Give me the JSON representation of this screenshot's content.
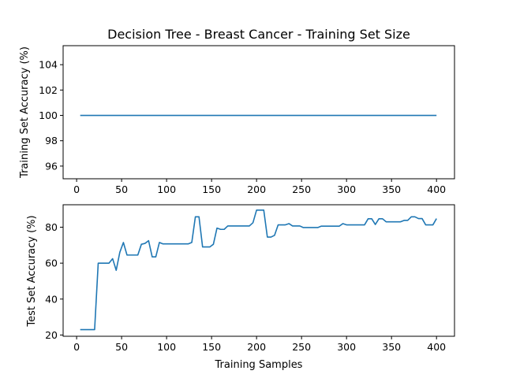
{
  "chart_data": [
    {
      "type": "line",
      "title": "Decision Tree - Breast Cancer - Training Set Size",
      "xlabel": "",
      "ylabel": "Training Set Accuracy (%)",
      "xlim": [
        -15,
        420
      ],
      "ylim": [
        95,
        105.5
      ],
      "xticks": [
        0,
        50,
        100,
        150,
        200,
        250,
        300,
        350,
        400
      ],
      "yticks": [
        96,
        98,
        100,
        102,
        104
      ],
      "grid": false,
      "color": "#1f77b4",
      "x": [
        4,
        400
      ],
      "y": [
        100,
        100
      ]
    },
    {
      "type": "line",
      "title": "",
      "xlabel": "Training Samples",
      "ylabel": "Test Set Accuracy (%)",
      "xlim": [
        -15,
        420
      ],
      "ylim": [
        19.3,
        92.5
      ],
      "xticks": [
        0,
        50,
        100,
        150,
        200,
        250,
        300,
        350,
        400
      ],
      "yticks": [
        20,
        40,
        60,
        80
      ],
      "grid": false,
      "color": "#1f77b4",
      "x": [
        4,
        20,
        24,
        36,
        40,
        44,
        48,
        52,
        56,
        68,
        72,
        76,
        80,
        84,
        88,
        92,
        96,
        124,
        128,
        132,
        136,
        140,
        148,
        152,
        156,
        160,
        164,
        168,
        192,
        196,
        200,
        208,
        212,
        216,
        220,
        224,
        232,
        236,
        240,
        248,
        252,
        268,
        272,
        292,
        296,
        300,
        320,
        324,
        328,
        332,
        336,
        340,
        344,
        360,
        364,
        368,
        372,
        376,
        380,
        384,
        388,
        396,
        400
      ],
      "y": [
        23,
        23,
        60,
        60,
        62.5,
        56,
        66,
        71.5,
        64.5,
        64.5,
        70.5,
        71,
        72.5,
        63.5,
        63.5,
        71.5,
        70.7,
        70.7,
        71.5,
        85.8,
        85.8,
        69,
        69,
        70.5,
        79.5,
        78.8,
        78.8,
        80.7,
        80.7,
        82.5,
        89.5,
        89.5,
        74.5,
        74.5,
        75.5,
        81.3,
        81.3,
        82,
        80.7,
        80.7,
        79.8,
        79.8,
        80.6,
        80.6,
        82,
        81.3,
        81.3,
        84.7,
        84.7,
        81.5,
        84.7,
        84.7,
        83,
        83,
        83.8,
        83.8,
        85.8,
        85.8,
        84.8,
        84.8,
        81.3,
        81.3,
        84.8
      ]
    }
  ]
}
